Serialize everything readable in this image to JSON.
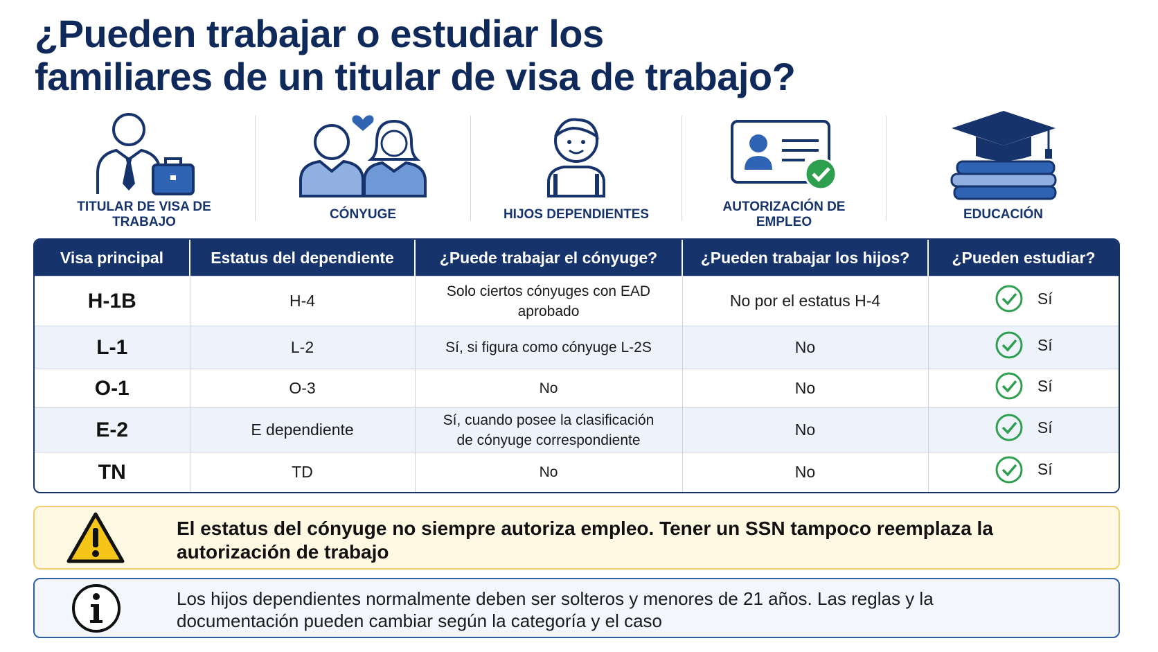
{
  "header": {
    "title_lines": [
      "¿Pueden trabajar o estudiar los",
      "familiares de un titular de visa de trabajo?"
    ]
  },
  "icons": [
    {
      "label": "TITULAR DE VISA DE TRABAJO"
    },
    {
      "label": "CÓNYUGE"
    },
    {
      "label": "HIJOS DEPENDIENTES"
    },
    {
      "label": "AUTORIZACIÓN DE EMPLEO"
    },
    {
      "label": "EDUCACIÓN"
    }
  ],
  "table": {
    "headers": [
      "Visa principal",
      "Estatus del dependiente",
      "¿Puede trabajar el cónyuge?",
      "¿Pueden trabajar los hijos?",
      "¿Pueden estudiar?"
    ],
    "rows": [
      [
        "H-1B",
        "H-4",
        "Solo ciertos cónyuges con EAD aprobado",
        "No por el estatus H-4",
        "Sí"
      ],
      [
        "L-1",
        "L-2",
        "Sí, si figura como cónyuge L-2S",
        "No",
        "Sí"
      ],
      [
        "O-1",
        "O-3",
        "No",
        "No",
        "Sí"
      ],
      [
        "E-2",
        "E dependiente",
        "Sí, cuando posee la clasificación de cónyuge correspondiente",
        "No",
        "Sí"
      ],
      [
        "TN",
        "TD",
        "No",
        "No",
        "Sí"
      ]
    ]
  },
  "warning": {
    "text": "El estatus del cónyuge no siempre autoriza empleo. Tener un SSN tampoco reemplaza la autorización de trabajo"
  },
  "info": {
    "text": "Los hijos dependientes normalmente deben ser solteros y menores de 21 años. Las reglas y la documentación pueden cambiar según la categoría y el caso"
  }
}
